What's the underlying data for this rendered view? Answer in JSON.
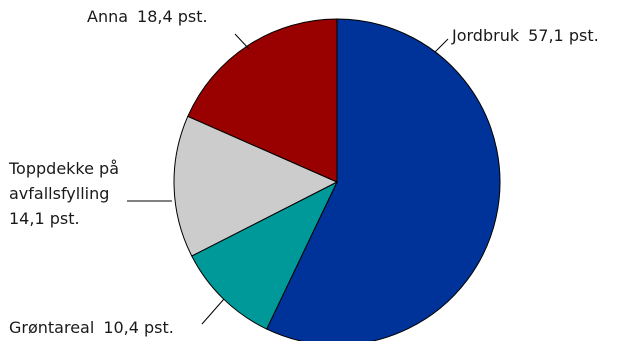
{
  "chart_data": {
    "type": "pie",
    "title": "",
    "legend": "none",
    "slices": [
      {
        "label": "Jordbruk",
        "value": 57.1,
        "value_text": "57,1 pst.",
        "color": "#003399"
      },
      {
        "label": "Grøntareal",
        "value": 10.4,
        "value_text": "10,4 pst.",
        "color": "#009999"
      },
      {
        "label": "Toppdekke på avfallsfylling",
        "label_lines": [
          "Toppdekke på",
          "avfallsfylling"
        ],
        "value": 14.1,
        "value_text": "14,1 pst.",
        "color": "#cccccc"
      },
      {
        "label": "Anna",
        "value": 18.4,
        "value_text": "18,4 pst.",
        "color": "#990000"
      }
    ]
  }
}
